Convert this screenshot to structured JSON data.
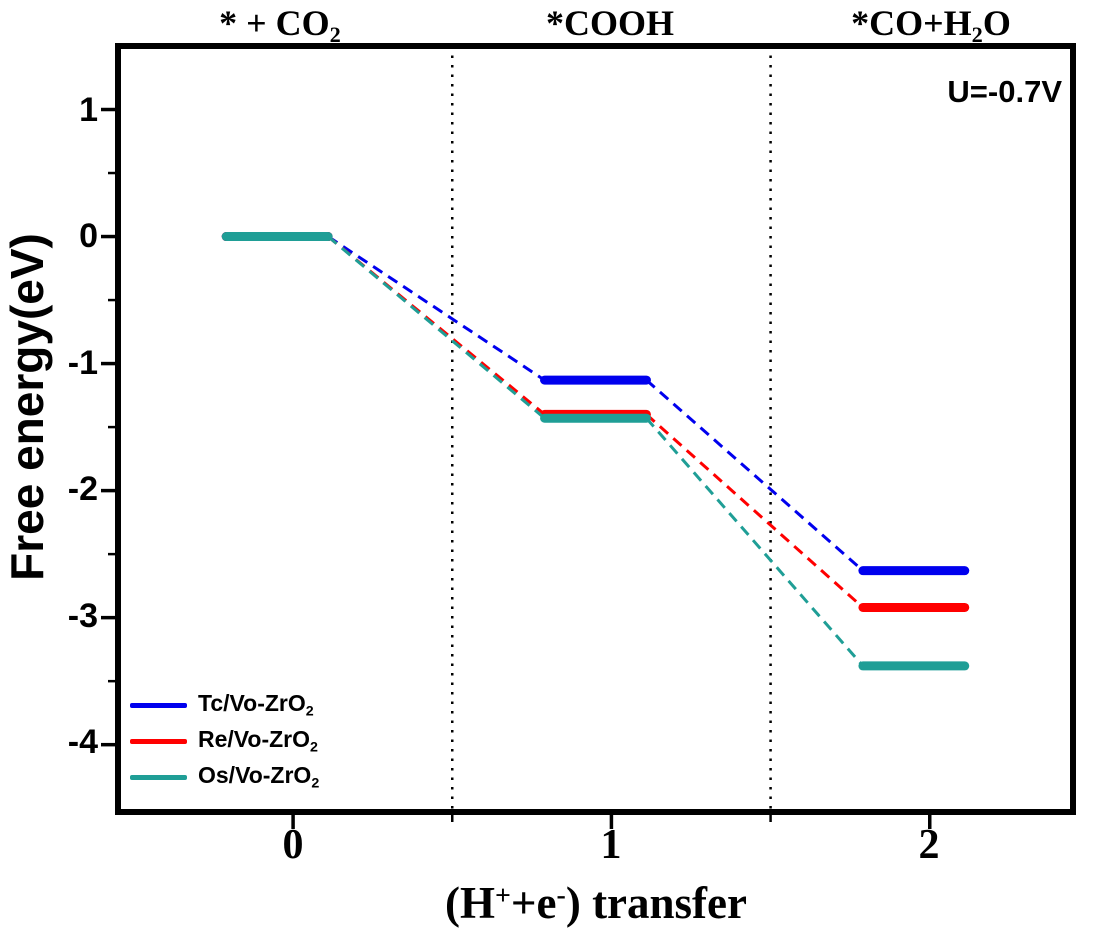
{
  "steps": [
    {
      "pre": "* + CO",
      "sub": "2",
      "post": ""
    },
    {
      "pre": "*COOH",
      "sub": "",
      "post": ""
    },
    {
      "pre": "*CO+H",
      "sub": "2",
      "post": "O"
    }
  ],
  "annotation": {
    "text": "U=-0.7V"
  },
  "y_axis": {
    "label": "Free energy(eV)",
    "ticks": [
      "1",
      "0",
      "-1",
      "-2",
      "-3",
      "-4"
    ]
  },
  "x_axis": {
    "ticks": [
      "0",
      "1",
      "2"
    ],
    "label_parts": {
      "p1": "(H",
      "s1": "+",
      "p2": "+e",
      "s2": "-",
      "p3": ") transfer"
    }
  },
  "legend": [
    {
      "name": "Tc/Vo-ZrO",
      "sub": "2",
      "color": "#0000EE"
    },
    {
      "name": "Re/Vo-ZrO",
      "sub": "2",
      "color": "#FF0000"
    },
    {
      "name": "Os/Vo-ZrO",
      "sub": "2",
      "color": "#1F9E96"
    }
  ],
  "chart_data": {
    "type": "line",
    "subtype": "free-energy-step-diagram",
    "title": "",
    "xlabel": "(H⁺+e⁻) transfer",
    "ylabel": "Free energy(eV)",
    "annotation": "U=-0.7V",
    "x": [
      0,
      1,
      2
    ],
    "step_labels": [
      "* + CO2",
      "*COOH",
      "*CO+H2O"
    ],
    "series": [
      {
        "name": "Tc/Vo-ZrO2",
        "color": "#0000EE",
        "values": [
          0,
          -1.13,
          -2.63
        ]
      },
      {
        "name": "Re/Vo-ZrO2",
        "color": "#FF0000",
        "values": [
          0,
          -1.4,
          -2.92
        ]
      },
      {
        "name": "Os/Vo-ZrO2",
        "color": "#1F9E96",
        "values": [
          0,
          -1.43,
          -3.38
        ]
      }
    ],
    "xlim": [
      -0.55,
      2.45
    ],
    "ylim": [
      -4.53,
      1.5
    ],
    "y_major_ticks": [
      1,
      0,
      -1,
      -2,
      -3,
      -4
    ],
    "y_minor_ticks": [
      0.5,
      -0.5,
      -1.5,
      -2.5,
      -3.5
    ],
    "x_major_ticks": [
      0,
      1,
      2
    ],
    "x_minor_ticks": [
      0.5,
      1.5
    ],
    "guide_lines_x": [
      0.5,
      1.5
    ],
    "bar_span": [
      -0.21,
      0.11
    ],
    "connector_style": "dashed",
    "grid": false,
    "legend_position": "lower-left"
  }
}
